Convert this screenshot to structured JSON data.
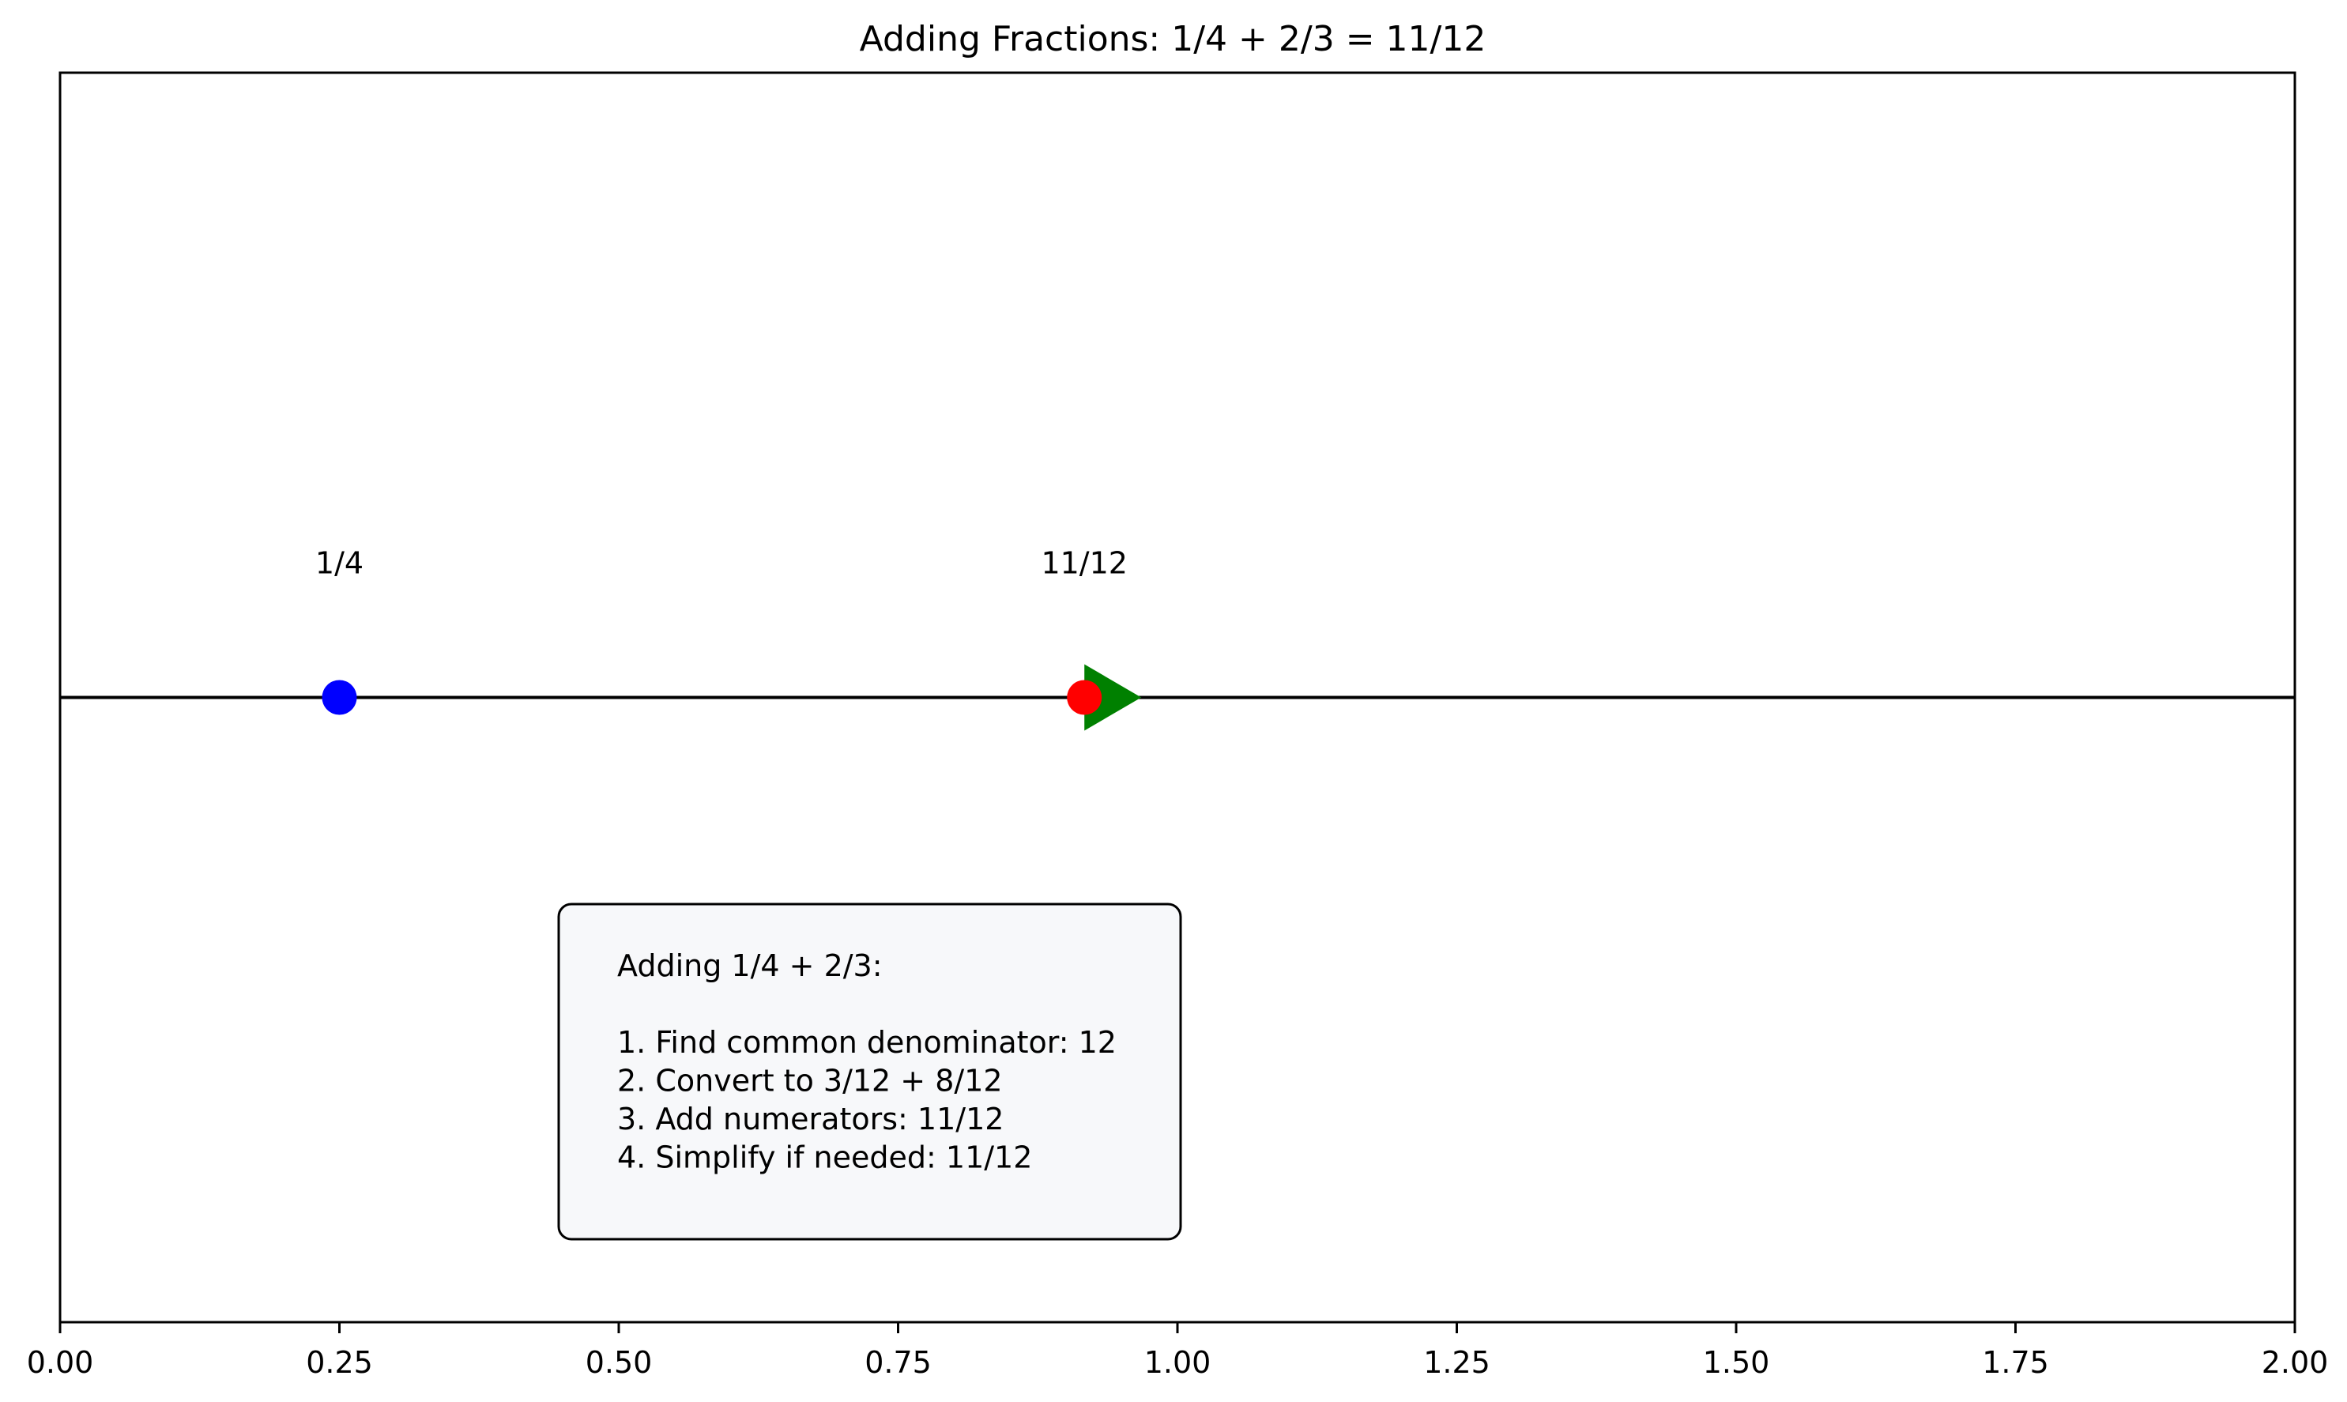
{
  "chart_data": {
    "type": "scatter",
    "title": "Adding Fractions: 1/4 + 2/3 = 11/12",
    "xlabel": "",
    "ylabel": "",
    "xlim": [
      0,
      2
    ],
    "ylim": [
      -1,
      1
    ],
    "x_ticks": [
      0.0,
      0.25,
      0.5,
      0.75,
      1.0,
      1.25,
      1.5,
      1.75,
      2.0
    ],
    "x_tick_labels": [
      "0.00",
      "0.25",
      "0.50",
      "0.75",
      "1.00",
      "1.25",
      "1.50",
      "1.75",
      "2.00"
    ],
    "y_ticks_visible": false,
    "grid": false,
    "number_line": {
      "y": 0,
      "color": "#000000"
    },
    "points": [
      {
        "x": 0.25,
        "y": 0,
        "label": "1/4",
        "color": "#0000ff"
      },
      {
        "x": 0.9167,
        "y": 0,
        "label": "11/12",
        "color": "#ff0000"
      }
    ],
    "arrow": {
      "x_start": 0.25,
      "x_end": 0.9167,
      "y": 0,
      "color": "#008000"
    },
    "annotation": {
      "x": 0.5,
      "y": -0.5,
      "lines": [
        "Adding 1/4 + 2/3:",
        "",
        "1. Find common denominator: 12",
        "2. Convert to 3/12 + 8/12",
        "3. Add numerators: 11/12",
        "4. Simplify if needed: 11/12"
      ],
      "box_fill": "#f7f8fa"
    }
  }
}
